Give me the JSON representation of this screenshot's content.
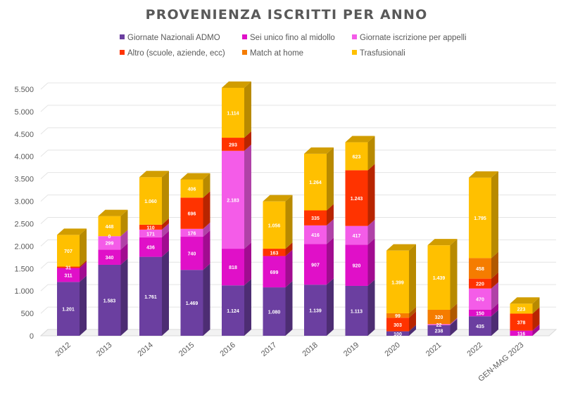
{
  "chart_data": {
    "type": "bar",
    "stacked": true,
    "three_d": true,
    "title": "PROVENIENZA ISCRITTI PER ANNO",
    "legend_position": "top",
    "categories": [
      "2012",
      "2013",
      "2014",
      "2015",
      "2016",
      "2017",
      "2018",
      "2019",
      "2020",
      "2021",
      "2022",
      "GEN-MAG 2023"
    ],
    "ylim": [
      0,
      5500
    ],
    "yticks": [
      0,
      500,
      1000,
      1500,
      2000,
      2500,
      3000,
      3500,
      4000,
      4500,
      5000,
      5500
    ],
    "ytick_labels": [
      "0",
      "500",
      "1.000",
      "1.500",
      "2.000",
      "2.500",
      "3.000",
      "3.500",
      "4.000",
      "4.500",
      "5.000",
      "5.500"
    ],
    "grid": true,
    "series": [
      {
        "name": "Giornate Nazionali ADMO",
        "color": "#6B3FA0",
        "values": [
          1201,
          1583,
          1761,
          1469,
          1124,
          1080,
          1139,
          1113,
          100,
          238,
          435,
          0
        ],
        "labels": [
          "1.201",
          "1.583",
          "1.761",
          "1.469",
          "1.124",
          "1.080",
          "1.139",
          "1.113",
          "100",
          "238",
          "435",
          ""
        ]
      },
      {
        "name": "Sei unico fino al midollo",
        "color": "#E010C8",
        "values": [
          311,
          340,
          436,
          740,
          818,
          699,
          907,
          920,
          0,
          0,
          150,
          116
        ],
        "labels": [
          "311",
          "340",
          "436",
          "740",
          "818",
          "699",
          "907",
          "920",
          "",
          "",
          "150",
          "116"
        ]
      },
      {
        "name": "Giornate iscrizione per appelli",
        "color": "#F45CE8",
        "values": [
          0,
          299,
          171,
          176,
          2183,
          0,
          416,
          417,
          0,
          22,
          470,
          0
        ],
        "labels": [
          "",
          "299",
          "171",
          "176",
          "2.183",
          "",
          "416",
          "417",
          "",
          "22",
          "470",
          ""
        ]
      },
      {
        "name": "Altro (scuole, aziende, ecc)",
        "color": "#FF3300",
        "values": [
          31,
          0,
          110,
          696,
          293,
          163,
          335,
          1243,
          303,
          0,
          220,
          378
        ],
        "labels": [
          "31",
          "0",
          "110",
          "696",
          "293",
          "163",
          "335",
          "1.243",
          "303",
          "",
          "220",
          "378"
        ]
      },
      {
        "name": "Match at home",
        "color": "#F57C00",
        "values": [
          0,
          0,
          0,
          0,
          0,
          0,
          0,
          0,
          99,
          320,
          458,
          0
        ],
        "labels": [
          "",
          "",
          "",
          "",
          "",
          "",
          "",
          "",
          "99",
          "320",
          "458",
          ""
        ]
      },
      {
        "name": "Trasfusionali",
        "color": "#FFC000",
        "values": [
          707,
          448,
          1060,
          406,
          1114,
          1056,
          1264,
          623,
          1399,
          1439,
          1795,
          223
        ],
        "labels": [
          "707",
          "448",
          "1.060",
          "406",
          "1.114",
          "1.056",
          "1.264",
          "623",
          "1.399",
          "1.439",
          "1.795",
          "223"
        ]
      }
    ]
  }
}
